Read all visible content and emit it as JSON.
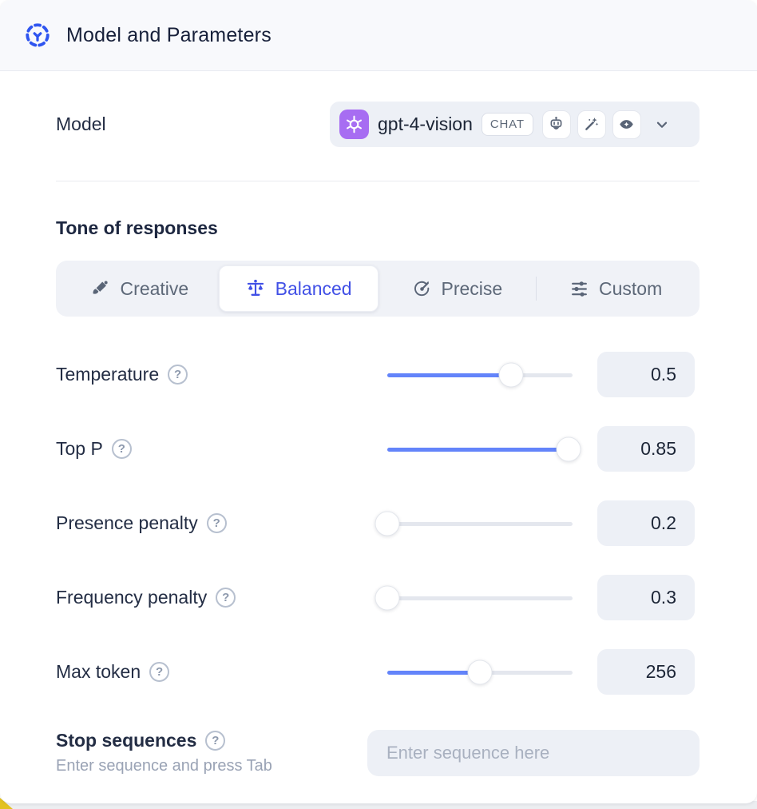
{
  "header": {
    "title": "Model and Parameters"
  },
  "model": {
    "label": "Model",
    "name": "gpt-4-vision",
    "type_badge": "CHAT",
    "capability_icons": [
      "robot-icon",
      "magic-wand-icon",
      "vision-eye-icon"
    ]
  },
  "tone": {
    "heading": "Tone of responses",
    "selected": "Balanced",
    "options": [
      {
        "label": "Creative",
        "icon": "paintbrush-icon"
      },
      {
        "label": "Balanced",
        "icon": "balance-scale-icon"
      },
      {
        "label": "Precise",
        "icon": "target-icon"
      },
      {
        "label": "Custom",
        "icon": "sliders-icon"
      }
    ]
  },
  "parameters": [
    {
      "label": "Temperature",
      "value": "0.5",
      "percent": 67
    },
    {
      "label": "Top P",
      "value": "0.85",
      "percent": 98
    },
    {
      "label": "Presence penalty",
      "value": "0.2",
      "percent": 0
    },
    {
      "label": "Frequency penalty",
      "value": "0.3",
      "percent": 0
    },
    {
      "label": "Max token",
      "value": "256",
      "percent": 50
    }
  ],
  "stop_sequences": {
    "label": "Stop sequences",
    "helper": "Enter sequence and press Tab",
    "placeholder": "Enter sequence here"
  },
  "help_glyph": "?",
  "colors": {
    "accent_blue": "#4150e6",
    "slider_fill": "#6384fa",
    "logo_purple": "#a76df2",
    "header_bg": "#f8f9fc",
    "control_bg": "#edf0f6",
    "text_dark": "#1c2536",
    "text_gray": "#5d6878",
    "bottom_accent_yellow": "#e3c220"
  }
}
